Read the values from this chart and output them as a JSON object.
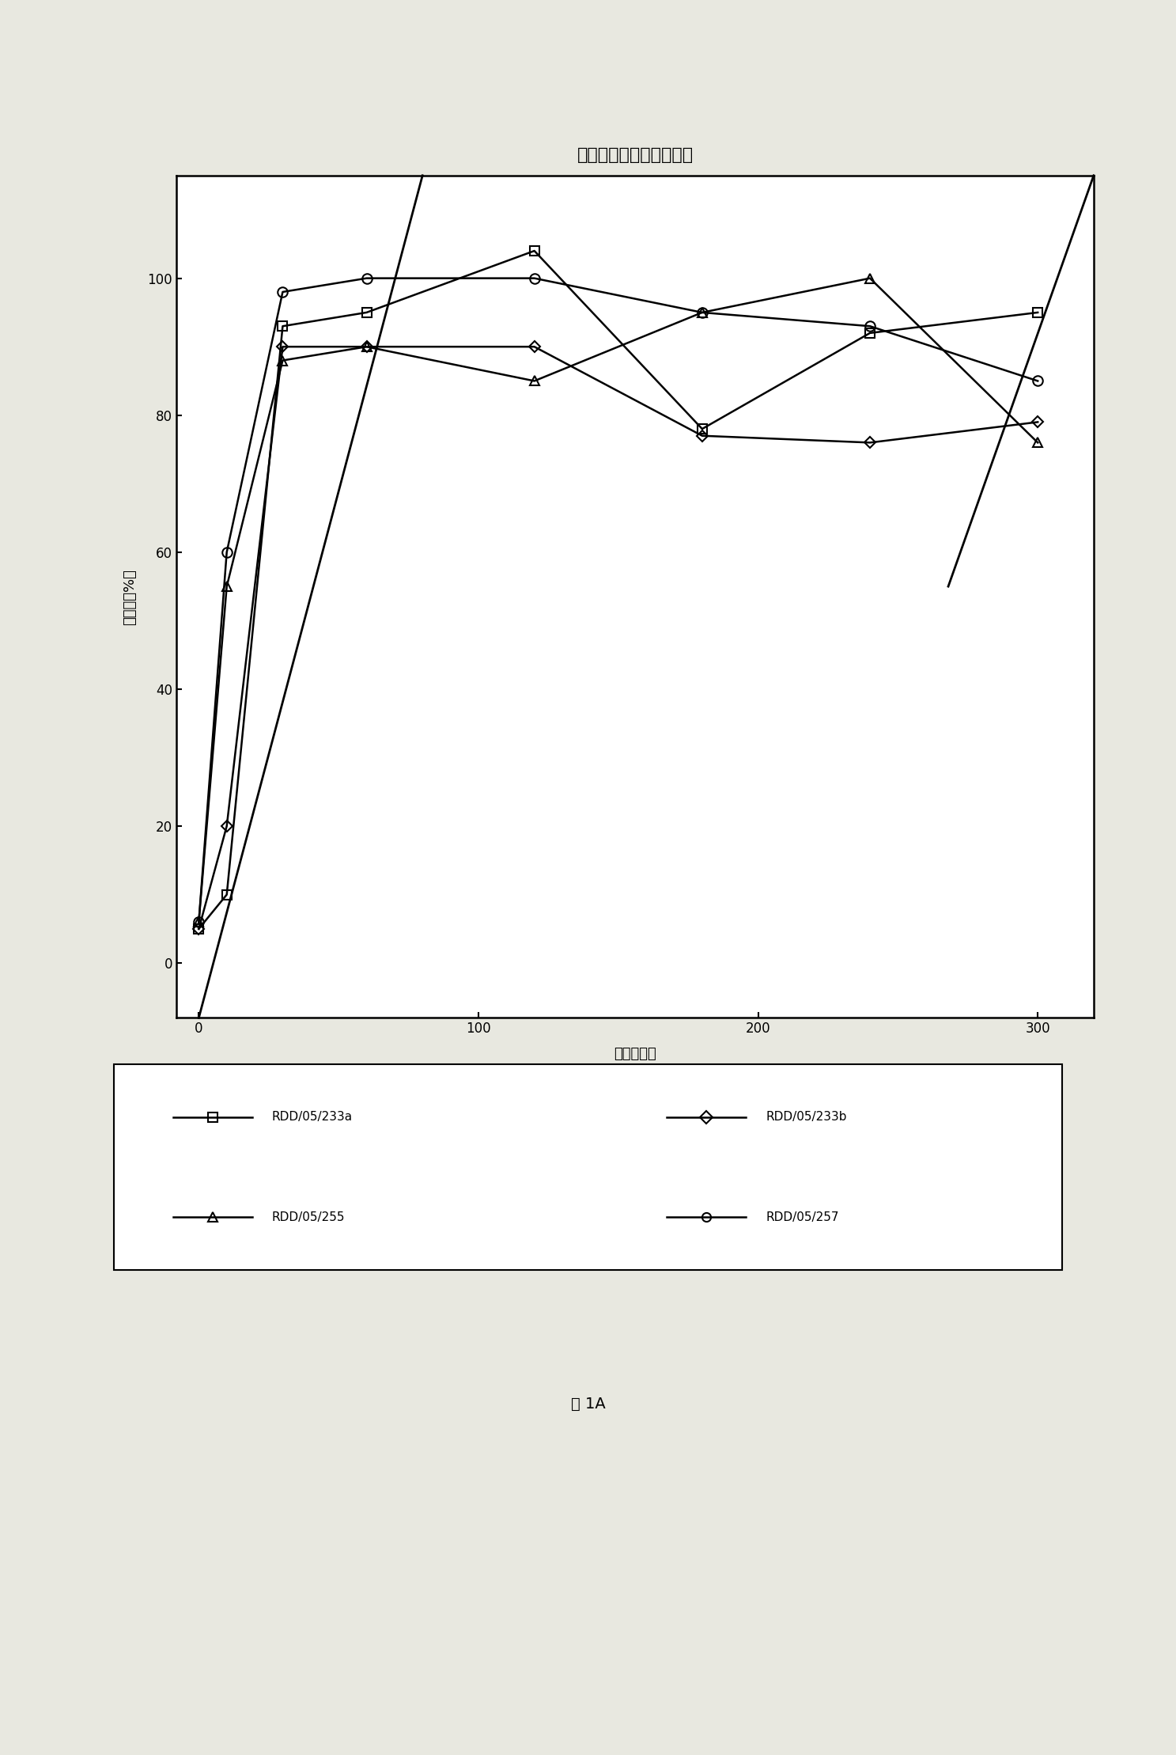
{
  "title": "从制剂中释放伊洛前列素",
  "xlabel": "时间（分）",
  "ylabel": "百分比（%）",
  "caption": "图 1A",
  "xlim": [
    -8,
    320
  ],
  "ylim": [
    -8,
    115
  ],
  "xticks": [
    0,
    100,
    200,
    300
  ],
  "yticks": [
    0,
    20,
    40,
    60,
    80,
    100
  ],
  "series": {
    "RDD/05/233a": {
      "x": [
        0,
        10,
        30,
        60,
        120,
        180,
        240,
        300
      ],
      "y": [
        5,
        10,
        93,
        95,
        104,
        78,
        92,
        95
      ],
      "marker": "s",
      "label": "RDD/05/233a"
    },
    "RDD/05/233b": {
      "x": [
        0,
        10,
        30,
        60,
        120,
        180,
        240,
        300
      ],
      "y": [
        5,
        20,
        90,
        90,
        90,
        77,
        76,
        79
      ],
      "marker": "D",
      "label": "RDD/05/233b"
    },
    "RDD/05/255": {
      "x": [
        0,
        10,
        30,
        60,
        120,
        180,
        240,
        300
      ],
      "y": [
        6,
        55,
        88,
        90,
        85,
        95,
        100,
        76
      ],
      "marker": "^",
      "label": "RDD/05/255"
    },
    "RDD/05/257": {
      "x": [
        0,
        10,
        30,
        60,
        120,
        180,
        240,
        300
      ],
      "y": [
        6,
        60,
        98,
        100,
        100,
        95,
        93,
        85
      ],
      "marker": "o",
      "label": "RDD/05/257"
    }
  },
  "diag_line1": {
    "x": [
      0,
      80
    ],
    "y": [
      -8,
      115
    ]
  },
  "diag_line2": {
    "x": [
      268,
      320
    ],
    "y": [
      55,
      115
    ]
  },
  "background_color": "#ffffff",
  "figure_bgcolor": "#e8e8e0",
  "title_fontsize": 16,
  "label_fontsize": 13,
  "tick_fontsize": 12,
  "legend_fontsize": 11,
  "caption_fontsize": 14,
  "markersize": 8,
  "linewidth": 1.8
}
